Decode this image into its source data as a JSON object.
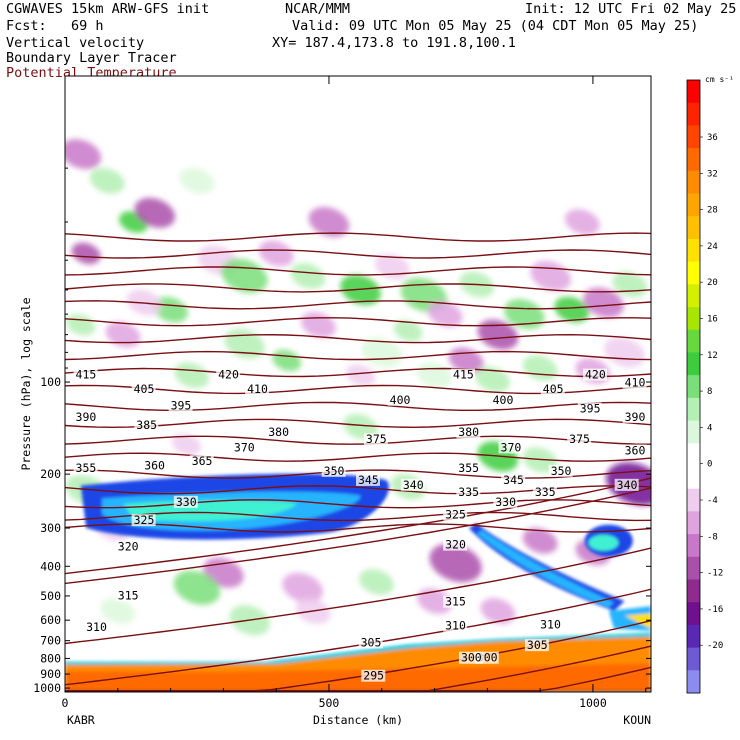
{
  "header": {
    "model": "CGWAVES 15km ARW-GFS init",
    "center": "NCAR/MMM",
    "init": "Init: 12 UTC Fri 02 May 25",
    "fcst": "Fcst:   69 h",
    "valid": "Valid: 09 UTC Mon 05 May 25 (04 CDT Mon 05 May 25)",
    "field1": "Vertical velocity",
    "xy": "XY= 187.4,173.8 to 191.8,100.1",
    "field2": "Boundary Layer Tracer",
    "field3": "Potential Temperature"
  },
  "chart_data": {
    "type": "heatmap",
    "title": "Vertical velocity",
    "xlabel": "Distance (km)",
    "ylabel": "Pressure (hPa), log scale",
    "x_ticks": [
      0,
      500,
      1000
    ],
    "xlim": [
      0,
      1110
    ],
    "x_endpoints": [
      "KABR",
      "KOUN"
    ],
    "y_scale": "log",
    "y_ticks": [
      100,
      200,
      300,
      400,
      500,
      600,
      700,
      800,
      900,
      1000
    ],
    "ylim": [
      1030,
      10
    ],
    "colorbar": {
      "units": "cm s⁻¹",
      "labels": [
        36,
        32,
        28,
        24,
        20,
        16,
        12,
        8,
        4,
        0,
        -4,
        -8,
        -12,
        -16,
        -20
      ],
      "colors": [
        "#ff0000",
        "#ff2400",
        "#ff4500",
        "#ff6a00",
        "#ff8c00",
        "#ffa500",
        "#ffc000",
        "#ffe000",
        "#ffff00",
        "#d2f000",
        "#a6e600",
        "#66d93c",
        "#3ccc3c",
        "#7ade7a",
        "#b4efb4",
        "#dcf8dc",
        "#ffffff",
        "#ffffff",
        "#efcdef",
        "#dfa3df",
        "#c878c8",
        "#aa50aa",
        "#8f2a8f",
        "#6e1090",
        "#5a28b4",
        "#6e5ad2",
        "#8c8cf0"
      ]
    },
    "theta_labels": [
      {
        "value": 415,
        "x": 20,
        "p": 96
      },
      {
        "value": 420,
        "x": 290,
        "p": 96
      },
      {
        "value": 405,
        "x": 130,
        "p": 107
      },
      {
        "value": 410,
        "x": 345,
        "p": 107
      },
      {
        "value": 395,
        "x": 200,
        "p": 121
      },
      {
        "value": 390,
        "x": 20,
        "p": 132
      },
      {
        "value": 385,
        "x": 135,
        "p": 140
      },
      {
        "value": 380,
        "x": 385,
        "p": 148
      },
      {
        "value": 375,
        "x": 570,
        "p": 156
      },
      {
        "value": 370,
        "x": 320,
        "p": 166
      },
      {
        "value": 365,
        "x": 240,
        "p": 184
      },
      {
        "value": 360,
        "x": 150,
        "p": 190
      },
      {
        "value": 355,
        "x": 20,
        "p": 194
      },
      {
        "value": 350,
        "x": 490,
        "p": 198
      },
      {
        "value": 345,
        "x": 555,
        "p": 212
      },
      {
        "value": 340,
        "x": 640,
        "p": 220
      },
      {
        "value": 335,
        "x": 745,
        "p": 232
      },
      {
        "value": 330,
        "x": 210,
        "p": 250
      },
      {
        "value": 325,
        "x": 130,
        "p": 287
      },
      {
        "value": 320,
        "x": 100,
        "p": 350
      },
      {
        "value": 315,
        "x": 100,
        "p": 505
      },
      {
        "value": 310,
        "x": 40,
        "p": 640
      },
      {
        "value": 305,
        "x": 560,
        "p": 720
      },
      {
        "value": 300,
        "x": 780,
        "p": 808
      },
      {
        "value": 295,
        "x": 565,
        "p": 925
      },
      {
        "value": 415,
        "x": 735,
        "p": 96
      },
      {
        "value": 420,
        "x": 985,
        "p": 96
      },
      {
        "value": 410,
        "x": 1060,
        "p": 102
      },
      {
        "value": 405,
        "x": 905,
        "p": 107
      },
      {
        "value": 400,
        "x": 810,
        "p": 116
      },
      {
        "value": 400,
        "x": 615,
        "p": 116
      },
      {
        "value": 395,
        "x": 975,
        "p": 124
      },
      {
        "value": 390,
        "x": 1060,
        "p": 132
      },
      {
        "value": 380,
        "x": 745,
        "p": 148
      },
      {
        "value": 375,
        "x": 955,
        "p": 156
      },
      {
        "value": 370,
        "x": 825,
        "p": 166
      },
      {
        "value": 360,
        "x": 1060,
        "p": 170
      },
      {
        "value": 355,
        "x": 745,
        "p": 194
      },
      {
        "value": 350,
        "x": 920,
        "p": 198
      },
      {
        "value": 345,
        "x": 830,
        "p": 212
      },
      {
        "value": 340,
        "x": 1045,
        "p": 220
      },
      {
        "value": 335,
        "x": 890,
        "p": 232
      },
      {
        "value": 330,
        "x": 815,
        "p": 250
      },
      {
        "value": 325,
        "x": 720,
        "p": 275
      },
      {
        "value": 320,
        "x": 720,
        "p": 345
      },
      {
        "value": 315,
        "x": 720,
        "p": 530
      },
      {
        "value": 310,
        "x": 720,
        "p": 635
      },
      {
        "value": 310,
        "x": 900,
        "p": 630
      },
      {
        "value": 305,
        "x": 875,
        "p": 735
      },
      {
        "value": 300,
        "x": 750,
        "p": 808
      }
    ],
    "grid": false,
    "legend": "colorbar right"
  }
}
